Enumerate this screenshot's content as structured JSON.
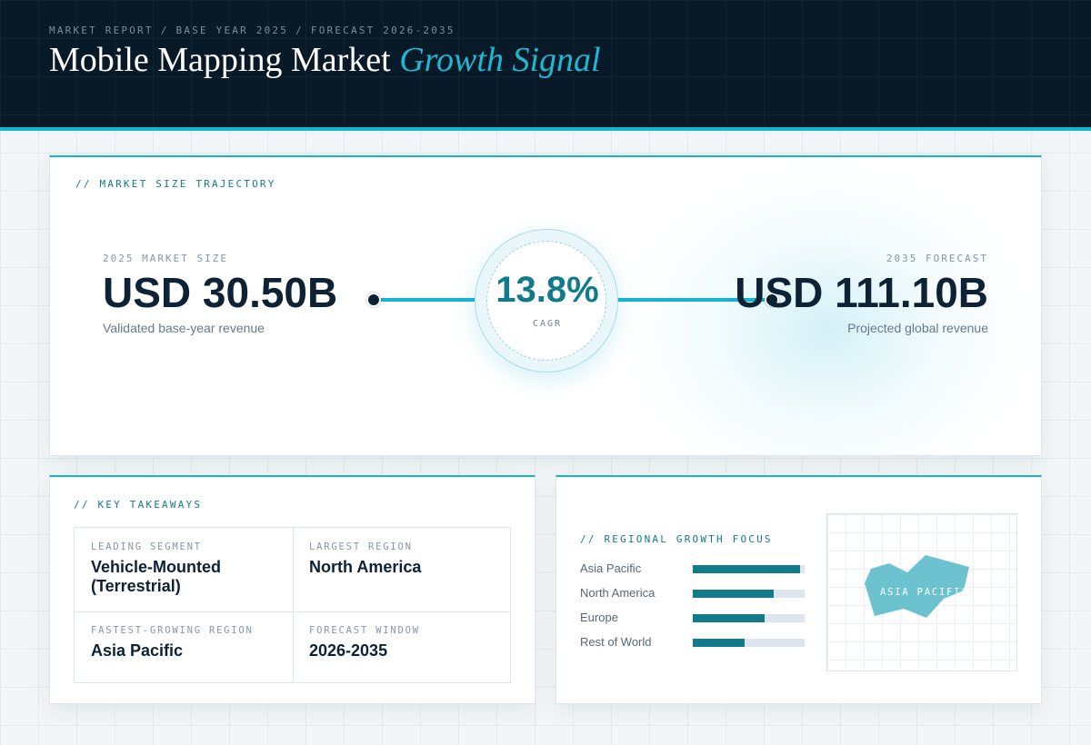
{
  "header": {
    "breadcrumb": [
      "MARKET REPORT",
      "BASE YEAR 2025",
      "FORECAST 2026-2035"
    ],
    "breadcrumb_separator": "/",
    "title_main": "Mobile Mapping Market",
    "title_accent": "Growth Signal"
  },
  "trajectory": {
    "section_label": "// MARKET SIZE TRAJECTORY",
    "start": {
      "label": "2025 MARKET SIZE",
      "value": "USD 30.50B",
      "sub": "Validated base-year revenue"
    },
    "cagr": {
      "value": "13.8%",
      "label": "CAGR"
    },
    "end": {
      "label": "2035 FORECAST",
      "value": "USD 111.10B",
      "sub": "Projected global revenue"
    }
  },
  "takeaways": {
    "section_label": "// KEY TAKEAWAYS",
    "items": [
      {
        "label": "LEADING SEGMENT",
        "value": "Vehicle-Mounted (Terrestrial)"
      },
      {
        "label": "LARGEST REGION",
        "value": "North America"
      },
      {
        "label": "FASTEST-GROWING REGION",
        "value": "Asia Pacific"
      },
      {
        "label": "FORECAST WINDOW",
        "value": "2026-2035"
      }
    ]
  },
  "regional": {
    "section_label": "// REGIONAL GROWTH FOCUS",
    "bars": [
      {
        "name": "Asia Pacific",
        "level": 0.96
      },
      {
        "name": "North America",
        "level": 0.72
      },
      {
        "name": "Europe",
        "level": 0.64
      },
      {
        "name": "Rest of World",
        "level": 0.46
      }
    ],
    "map_label": "ASIA PACIFIC"
  },
  "colors": {
    "accent": "#15b4d1",
    "accent_dark": "#117a8b",
    "header_bg": "#081a28",
    "text_dark": "#0e2235",
    "map_shape": "#6cc3cf"
  }
}
